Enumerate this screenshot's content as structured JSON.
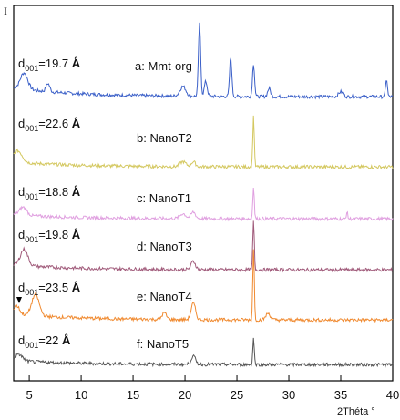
{
  "chart_data": {
    "type": "line",
    "title": "",
    "ylabel": "I",
    "xlabel": "2Théta °",
    "xlim": [
      3.5,
      40
    ],
    "xticks": [
      5,
      10,
      15,
      20,
      25,
      30,
      35,
      40
    ],
    "grid": false,
    "legend": "none",
    "series": [
      {
        "name": "a: Mmt-org",
        "annotation": {
          "prefix": "d",
          "sub": "001",
          "value": "=19.7",
          "unit": "Å"
        },
        "color": "#3a5fc8",
        "baseline": 18,
        "peaks": [
          [
            4.5,
            20,
            0.5
          ],
          [
            6.8,
            10,
            0.25
          ],
          [
            19.8,
            12,
            0.4
          ],
          [
            21.4,
            88,
            0.15
          ],
          [
            22.0,
            18,
            0.2
          ],
          [
            24.4,
            48,
            0.15
          ],
          [
            26.6,
            40,
            0.14
          ],
          [
            28.1,
            10,
            0.2
          ],
          [
            35.0,
            6,
            0.3
          ],
          [
            39.4,
            22,
            0.12
          ]
        ]
      },
      {
        "name": "b: NanoT2",
        "annotation": {
          "prefix": "d",
          "sub": "001",
          "value": "=22.6",
          "unit": "Å"
        },
        "color": "#d4c860",
        "baseline": 10,
        "peaks": [
          [
            3.9,
            14,
            0.6
          ],
          [
            19.8,
            6,
            0.4
          ],
          [
            20.8,
            6,
            0.3
          ],
          [
            26.6,
            62,
            0.1
          ]
        ]
      },
      {
        "name": "c: NanoT1",
        "annotation": {
          "prefix": "d",
          "sub": "001",
          "value": "=18.8",
          "unit": "Å"
        },
        "color": "#e0a0e0",
        "baseline": 8,
        "peaks": [
          [
            4.4,
            10,
            0.5
          ],
          [
            19.8,
            6,
            0.4
          ],
          [
            20.8,
            8,
            0.3
          ],
          [
            26.6,
            40,
            0.1
          ],
          [
            35.6,
            8,
            0.1
          ]
        ]
      },
      {
        "name": "d: NanoT3",
        "annotation": {
          "prefix": "d",
          "sub": "001",
          "value": "=19.8",
          "unit": "Å"
        },
        "color": "#a05a7a",
        "baseline": 10,
        "peaks": [
          [
            4.5,
            20,
            0.5
          ],
          [
            20.8,
            10,
            0.3
          ],
          [
            26.6,
            60,
            0.1
          ]
        ]
      },
      {
        "name": "e: NanoT4",
        "annotation": {
          "prefix": "d",
          "sub": "001",
          "value": "=23.5",
          "unit": "Å"
        },
        "color": "#f08a30",
        "baseline": 12,
        "peaks": [
          [
            3.8,
            10,
            0.4
          ],
          [
            5.6,
            26,
            0.5
          ],
          [
            18.0,
            8,
            0.3
          ],
          [
            20.8,
            20,
            0.3
          ],
          [
            26.6,
            88,
            0.1
          ],
          [
            28.0,
            8,
            0.3
          ]
        ]
      },
      {
        "name": "f: NanoT5",
        "annotation": {
          "prefix": "d",
          "sub": "001",
          "value": "=22",
          "unit": "Å"
        },
        "color": "#555555",
        "baseline": 8,
        "peaks": [
          [
            4.0,
            8,
            0.5
          ],
          [
            20.8,
            10,
            0.3
          ],
          [
            26.6,
            32,
            0.1
          ]
        ]
      }
    ]
  }
}
